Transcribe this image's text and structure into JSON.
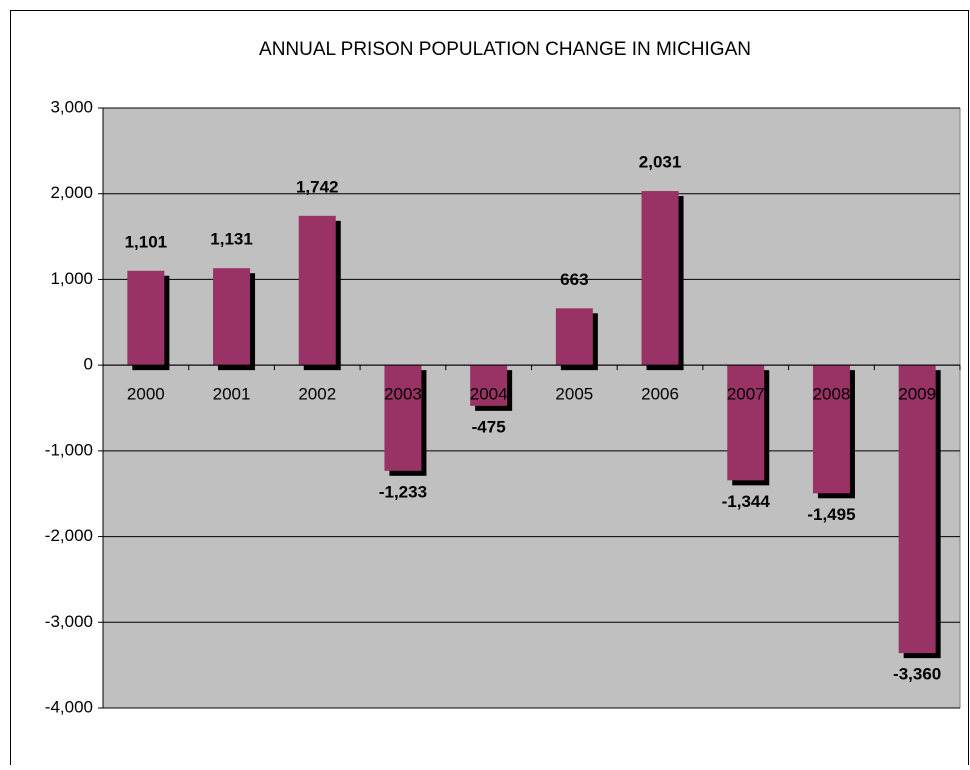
{
  "chart_data": {
    "type": "bar",
    "title": "ANNUAL PRISON POPULATION CHANGE IN MICHIGAN",
    "categories": [
      "2000",
      "2001",
      "2002",
      "2003",
      "2004",
      "2005",
      "2006",
      "2007",
      "2008",
      "2009"
    ],
    "values": [
      1101,
      1131,
      1742,
      -1233,
      -475,
      663,
      2031,
      -1344,
      -1495,
      -3360
    ],
    "value_labels": [
      "1,101",
      "1,131",
      "1,742",
      "-1,233",
      "-475",
      "663",
      "2,031",
      "-1,344",
      "-1,495",
      "-3,360"
    ],
    "color": "#993366",
    "ylim": [
      -4000,
      3000
    ],
    "yticks": [
      {
        "value": -4000,
        "label": "-4,000"
      },
      {
        "value": -3000,
        "label": "-3,000"
      },
      {
        "value": -2000,
        "label": "-2,000"
      },
      {
        "value": -1000,
        "label": "-1,000"
      },
      0,
      {
        "value": 1000,
        "label": "1,000"
      },
      {
        "value": 2000,
        "label": "2,000"
      },
      {
        "value": 3000,
        "label": "3,000"
      }
    ],
    "grid": true
  }
}
